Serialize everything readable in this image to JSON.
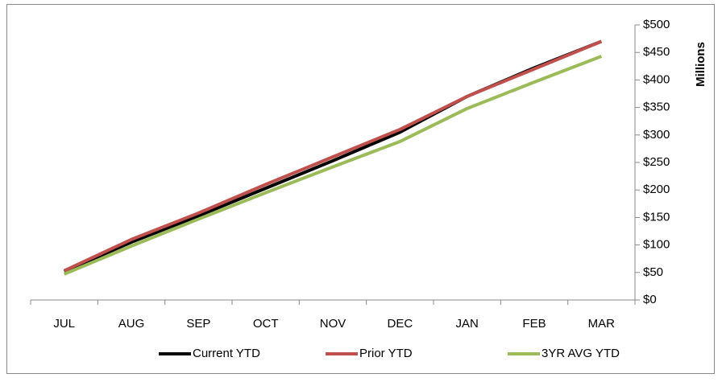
{
  "chart_data": {
    "type": "line",
    "categories": [
      "JUL",
      "AUG",
      "SEP",
      "OCT",
      "NOV",
      "DEC",
      "JAN",
      "FEB",
      "MAR"
    ],
    "series": [
      {
        "name": "Current YTD",
        "color": "#000000",
        "values": [
          52,
          105,
          153,
          203,
          253,
          305,
          370,
          422,
          470
        ]
      },
      {
        "name": "Prior YTD",
        "color": "#c0504d",
        "values": [
          53,
          110,
          158,
          210,
          260,
          310,
          370,
          420,
          470
        ]
      },
      {
        "name": "3YR AVG YTD",
        "color": "#9bbb59",
        "values": [
          47,
          98,
          147,
          195,
          242,
          288,
          348,
          396,
          443
        ]
      }
    ],
    "y_axis_label": "Millions",
    "ylim": [
      0,
      500
    ],
    "yticks": [
      {
        "value": 0,
        "label": "$0"
      },
      {
        "value": 50,
        "label": "$50"
      },
      {
        "value": 100,
        "label": "$100"
      },
      {
        "value": 150,
        "label": "$150"
      },
      {
        "value": 200,
        "label": "$200"
      },
      {
        "value": 250,
        "label": "$250"
      },
      {
        "value": 300,
        "label": "$300"
      },
      {
        "value": 350,
        "label": "$350"
      },
      {
        "value": 400,
        "label": "$400"
      },
      {
        "value": 450,
        "label": "$450"
      },
      {
        "value": 500,
        "label": "$500"
      }
    ],
    "y_axis_side": "right",
    "grid": false,
    "legend": "bottom"
  }
}
